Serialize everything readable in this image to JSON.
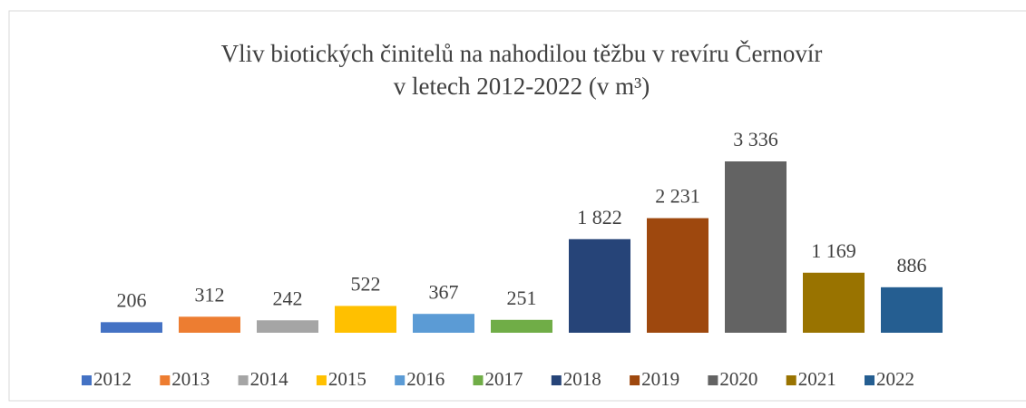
{
  "chart_data": {
    "type": "bar",
    "title": [
      "Vliv biotických činitelů na nahodilou těžbu v revíru Černovír",
      "v letech 2012-2022 (v m³)"
    ],
    "categories": [
      "2012",
      "2013",
      "2014",
      "2015",
      "2016",
      "2017",
      "2018",
      "2019",
      "2020",
      "2021",
      "2022"
    ],
    "values": [
      206,
      312,
      242,
      522,
      367,
      251,
      1822,
      2231,
      3336,
      1169,
      886
    ],
    "value_labels": [
      "206",
      "312",
      "242",
      "522",
      "367",
      "251",
      "1 822",
      "2 231",
      "3 336",
      "1 169",
      "886"
    ],
    "colors": [
      "#4472c4",
      "#ed7d31",
      "#a5a5a5",
      "#ffc000",
      "#5b9bd5",
      "#70ad47",
      "#264478",
      "#9e480e",
      "#636363",
      "#997300",
      "#255e91"
    ],
    "legend": "bottom"
  }
}
